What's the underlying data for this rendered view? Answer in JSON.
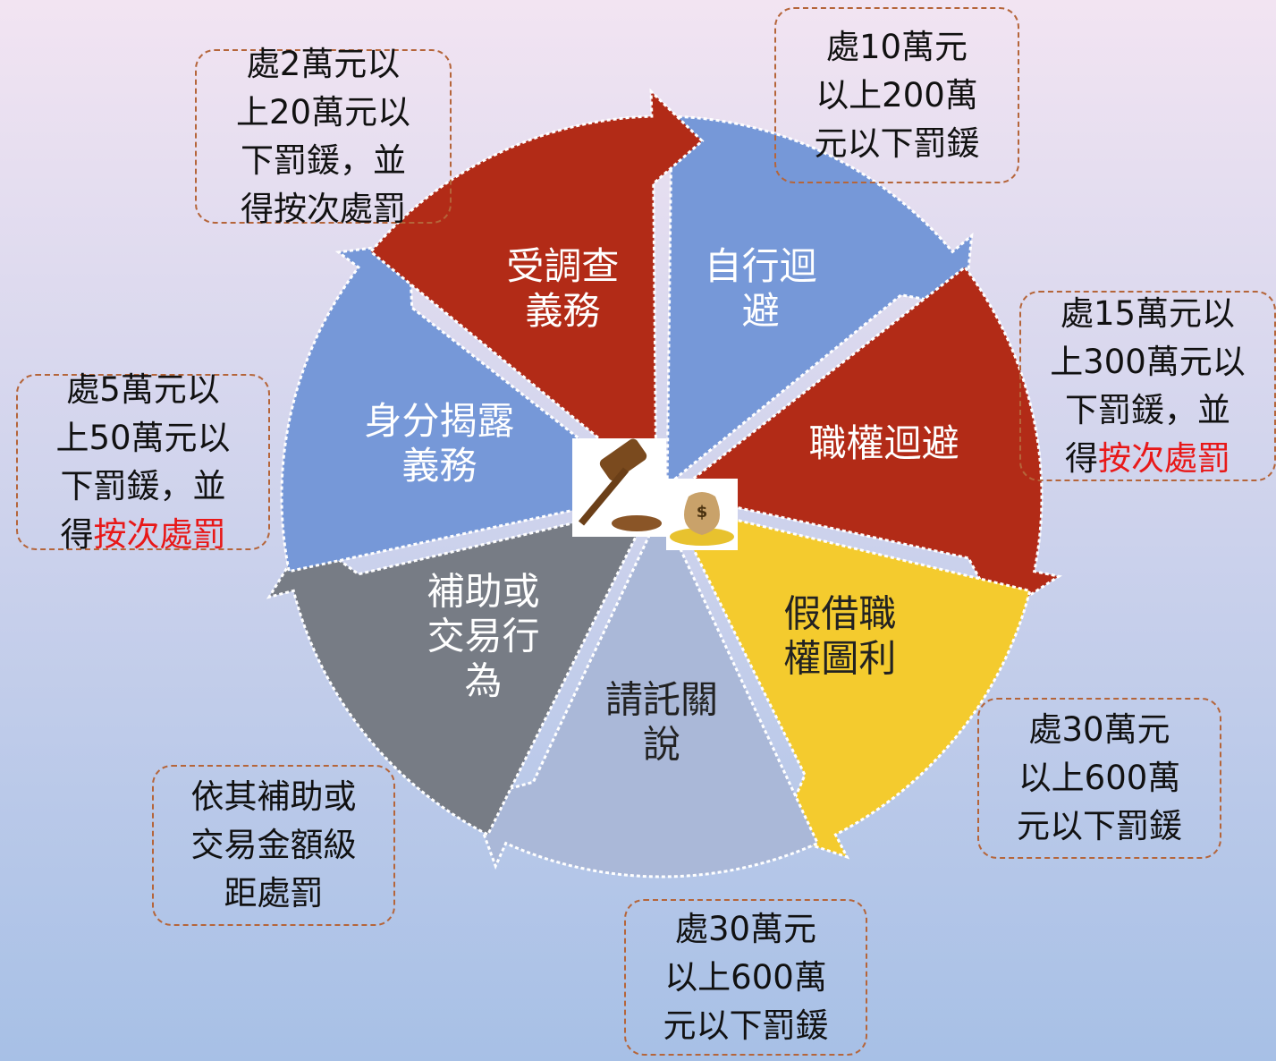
{
  "segments": [
    {
      "label": [
        "自行迴",
        "避"
      ],
      "color": "#7698d8",
      "text_color": "#ffffff",
      "penalty": {
        "lines": [
          "處10萬元",
          "以上200萬",
          "元以下罰鍰"
        ]
      }
    },
    {
      "label": [
        "職權迴避"
      ],
      "color": "#b22b17",
      "text_color": "#ffffff",
      "penalty": {
        "lines": [
          "處15萬元以",
          "上300萬元以",
          "下罰鍰，並",
          "得"
        ],
        "emphasis": "按次處罰"
      }
    },
    {
      "label": [
        "假借職",
        "權圖利"
      ],
      "color": "#f4cb2e",
      "text_color": "#222222",
      "penalty": {
        "lines": [
          "處30萬元",
          "以上600萬",
          "元以下罰鍰"
        ]
      }
    },
    {
      "label": [
        "請託關",
        "說"
      ],
      "color": "#aab8d8",
      "text_color": "#222222",
      "penalty": {
        "lines": [
          "處30萬元",
          "以上600萬",
          "元以下罰鍰"
        ]
      }
    },
    {
      "label": [
        "補助或",
        "交易行",
        "為"
      ],
      "color": "#777c85",
      "text_color": "#ffffff",
      "penalty": {
        "lines": [
          "依其補助或",
          "交易金額級",
          "距處罰"
        ]
      }
    },
    {
      "label": [
        "身分揭露",
        "義務"
      ],
      "color": "#7698d8",
      "text_color": "#ffffff",
      "penalty": {
        "lines": [
          "處5萬元以",
          "上50萬元以",
          "下罰鍰，並",
          "得"
        ],
        "emphasis": "按次處罰"
      }
    },
    {
      "label": [
        "受調查",
        "義務"
      ],
      "color": "#b22b17",
      "text_color": "#ffffff",
      "penalty": {
        "lines": [
          "處2萬元以",
          "上20萬元以",
          "下罰鍰，並",
          "得按次處罰"
        ]
      }
    }
  ]
}
